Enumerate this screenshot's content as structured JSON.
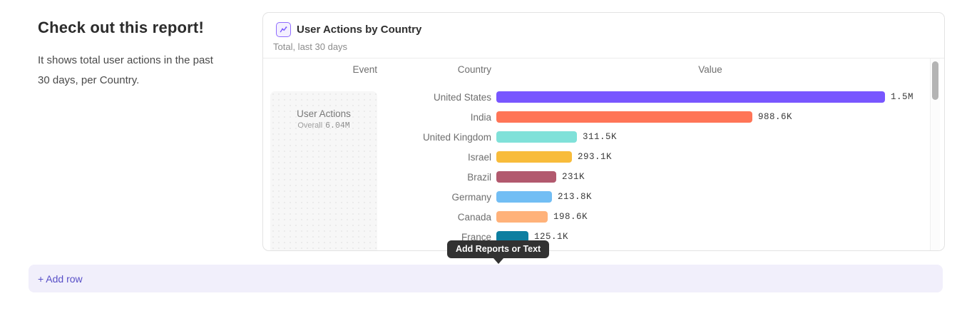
{
  "intro": {
    "heading": "Check out this report!",
    "description": "It shows total user actions in the past 30 days, per Country."
  },
  "report_card": {
    "icon": "line-chart-icon",
    "title": "User Actions by Country",
    "subtitle": "Total, last 30 days",
    "columns": {
      "event": "Event",
      "country": "Country",
      "value": "Value"
    },
    "event_cell": {
      "name": "User Actions",
      "aggregation": "Overall",
      "total": "6.04M"
    }
  },
  "chart_data": {
    "type": "bar",
    "orientation": "horizontal",
    "title": "User Actions by Country",
    "subtitle": "Total, last 30 days",
    "event": "User Actions",
    "overall_total_label": "6.04M",
    "categories": [
      "United States",
      "India",
      "United Kingdom",
      "Israel",
      "Brazil",
      "Germany",
      "Canada",
      "France"
    ],
    "values": [
      1500000,
      988600,
      311500,
      293100,
      231000,
      213800,
      198600,
      125100
    ],
    "value_labels": [
      "1.5M",
      "988.6K",
      "311.5K",
      "293.1K",
      "231K",
      "213.8K",
      "198.6K",
      "125.1K"
    ],
    "colors": [
      "#7856FF",
      "#FF7557",
      "#80E1D9",
      "#F8BC3B",
      "#B2596E",
      "#72BEF4",
      "#FFB27A",
      "#0D7EA0"
    ],
    "xlim": [
      0,
      1500000
    ],
    "grid": false,
    "legend": "none"
  },
  "tooltip": {
    "label": "Add Reports or Text"
  },
  "footer": {
    "add_row_label": "+ Add row"
  },
  "colors": {
    "accent": "#7856FF",
    "card_border": "#E3E3E3",
    "tooltip_bg": "#323232",
    "add_row_bg": "#F1EFFB",
    "add_row_text": "#584FC7"
  }
}
